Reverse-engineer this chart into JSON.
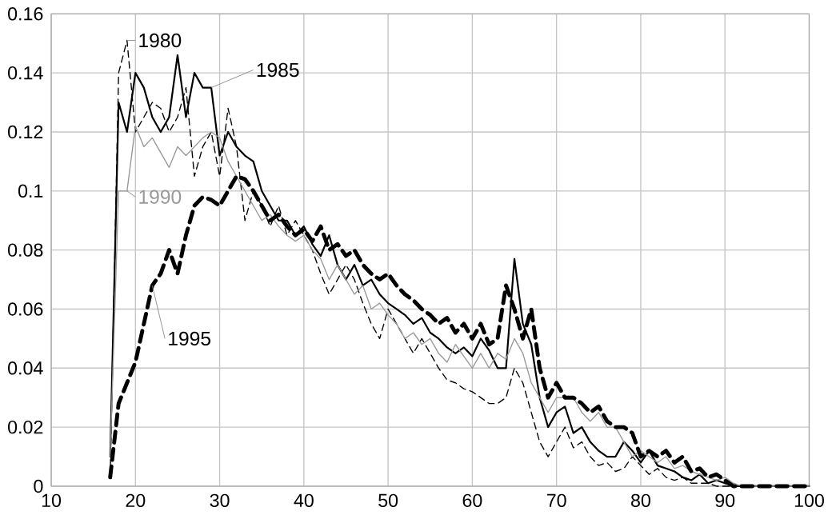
{
  "chart_data": {
    "type": "line",
    "xlim": [
      10,
      100
    ],
    "ylim": [
      0,
      0.16
    ],
    "xticks": [
      10,
      20,
      30,
      40,
      50,
      60,
      70,
      80,
      90,
      100
    ],
    "yticks": [
      0,
      0.02,
      0.04,
      0.06,
      0.08,
      0.1,
      0.12,
      0.14,
      0.16
    ],
    "grid": true,
    "marker": "none",
    "x": [
      17,
      18,
      19,
      20,
      21,
      22,
      23,
      24,
      25,
      26,
      27,
      28,
      29,
      30,
      31,
      32,
      33,
      34,
      35,
      36,
      37,
      38,
      39,
      40,
      41,
      42,
      43,
      44,
      45,
      46,
      47,
      48,
      49,
      50,
      51,
      52,
      53,
      54,
      55,
      56,
      57,
      58,
      59,
      60,
      61,
      62,
      63,
      64,
      65,
      66,
      67,
      68,
      69,
      70,
      71,
      72,
      73,
      74,
      75,
      76,
      77,
      78,
      79,
      80,
      81,
      82,
      83,
      84,
      85,
      86,
      87,
      88,
      89,
      90,
      91,
      92,
      100
    ],
    "series": [
      {
        "name": "1980",
        "color": "#000000",
        "line_style": "dashed",
        "values": [
          0.003,
          0.14,
          0.151,
          0.12,
          0.125,
          0.13,
          0.128,
          0.12,
          0.125,
          0.135,
          0.105,
          0.115,
          0.12,
          0.105,
          0.128,
          0.115,
          0.09,
          0.1,
          0.095,
          0.088,
          0.095,
          0.085,
          0.09,
          0.085,
          0.08,
          0.072,
          0.065,
          0.07,
          0.075,
          0.07,
          0.062,
          0.055,
          0.05,
          0.06,
          0.055,
          0.05,
          0.045,
          0.05,
          0.045,
          0.04,
          0.036,
          0.035,
          0.033,
          0.032,
          0.03,
          0.028,
          0.028,
          0.03,
          0.04,
          0.035,
          0.025,
          0.015,
          0.01,
          0.015,
          0.02,
          0.013,
          0.015,
          0.01,
          0.007,
          0.008,
          0.005,
          0.006,
          0.01,
          0.007,
          0.004,
          0.006,
          0.003,
          0.002,
          0.003,
          0.001,
          0.001,
          0.001,
          0,
          0,
          0,
          0,
          0
        ]
      },
      {
        "name": "1985",
        "color": "#000000",
        "line_style": "solid",
        "values": [
          0.01,
          0.13,
          0.12,
          0.14,
          0.135,
          0.125,
          0.12,
          0.125,
          0.146,
          0.125,
          0.14,
          0.135,
          0.135,
          0.112,
          0.12,
          0.115,
          0.112,
          0.11,
          0.1,
          0.095,
          0.09,
          0.09,
          0.085,
          0.088,
          0.082,
          0.078,
          0.085,
          0.075,
          0.07,
          0.075,
          0.068,
          0.07,
          0.065,
          0.062,
          0.06,
          0.058,
          0.055,
          0.057,
          0.052,
          0.05,
          0.047,
          0.045,
          0.047,
          0.044,
          0.05,
          0.046,
          0.04,
          0.04,
          0.077,
          0.055,
          0.048,
          0.03,
          0.02,
          0.025,
          0.027,
          0.018,
          0.02,
          0.015,
          0.012,
          0.01,
          0.01,
          0.015,
          0.012,
          0.008,
          0.012,
          0.007,
          0.006,
          0.005,
          0.003,
          0.002,
          0.004,
          0.001,
          0.002,
          0.001,
          0,
          0,
          0
        ]
      },
      {
        "name": "1990",
        "color": "#999999",
        "line_style": "solid",
        "values": [
          0.01,
          0.1,
          0.1,
          0.122,
          0.115,
          0.118,
          0.113,
          0.108,
          0.115,
          0.112,
          0.115,
          0.118,
          0.12,
          0.118,
          0.11,
          0.105,
          0.1,
          0.095,
          0.09,
          0.092,
          0.088,
          0.085,
          0.083,
          0.085,
          0.08,
          0.077,
          0.07,
          0.075,
          0.07,
          0.065,
          0.068,
          0.06,
          0.062,
          0.058,
          0.055,
          0.05,
          0.052,
          0.048,
          0.05,
          0.045,
          0.042,
          0.048,
          0.044,
          0.04,
          0.045,
          0.04,
          0.045,
          0.043,
          0.05,
          0.045,
          0.035,
          0.03,
          0.025,
          0.03,
          0.03,
          0.03,
          0.025,
          0.022,
          0.025,
          0.02,
          0.02,
          0.015,
          0.01,
          0.012,
          0.01,
          0.008,
          0.01,
          0.006,
          0.007,
          0.005,
          0.004,
          0.003,
          0.002,
          0.003,
          0.001,
          0,
          0
        ]
      },
      {
        "name": "1995",
        "color": "#000000",
        "line_style": "dashed",
        "values": [
          0.003,
          0.028,
          0.035,
          0.042,
          0.055,
          0.068,
          0.072,
          0.08,
          0.072,
          0.085,
          0.095,
          0.098,
          0.097,
          0.095,
          0.1,
          0.105,
          0.104,
          0.1,
          0.095,
          0.09,
          0.092,
          0.088,
          0.085,
          0.087,
          0.083,
          0.088,
          0.08,
          0.082,
          0.078,
          0.08,
          0.075,
          0.072,
          0.07,
          0.072,
          0.068,
          0.065,
          0.063,
          0.06,
          0.058,
          0.055,
          0.057,
          0.052,
          0.055,
          0.05,
          0.055,
          0.048,
          0.05,
          0.068,
          0.06,
          0.05,
          0.06,
          0.04,
          0.03,
          0.035,
          0.03,
          0.03,
          0.028,
          0.025,
          0.027,
          0.022,
          0.02,
          0.02,
          0.018,
          0.01,
          0.012,
          0.01,
          0.012,
          0.008,
          0.01,
          0.005,
          0.006,
          0.003,
          0.004,
          0.002,
          0,
          0,
          0
        ]
      }
    ]
  }
}
